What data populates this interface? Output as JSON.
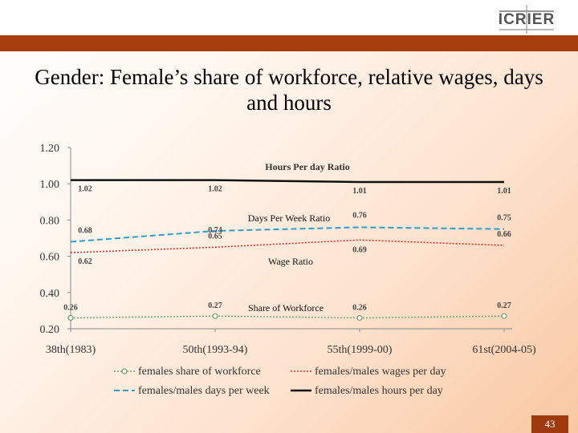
{
  "slide": {
    "title": "Gender: Female’s share of workforce, relative wages, days and hours",
    "logo_text": "ICRIER",
    "page_number": "43"
  },
  "colors": {
    "band": "#a53e0c",
    "share": "#6aa06a",
    "wages": "#e0302a",
    "days": "#2a9fd6",
    "hours": "#111111"
  },
  "chart_data": {
    "type": "line",
    "categories": [
      "38th(1983)",
      "50th(1993-94)",
      "55th(1999-00)",
      "61st(2004-05)"
    ],
    "ylim": [
      0.2,
      1.2
    ],
    "yticks": [
      "0.20",
      "0.40",
      "0.60",
      "0.80",
      "1.00",
      "1.20"
    ],
    "yticks_values": [
      0.2,
      0.4,
      0.6,
      0.8,
      1.0,
      1.2
    ],
    "grid": false,
    "legend_placement": "bottom",
    "series": [
      {
        "key": "share",
        "name": "females share of workforce",
        "values": [
          0.26,
          0.27,
          0.26,
          0.27
        ],
        "labels": [
          "0.26",
          "0.27",
          "0.26",
          "0.27"
        ],
        "style": "dotted-markers",
        "annotation": "Share of Workforce"
      },
      {
        "key": "wages",
        "name": "females/males wages per day",
        "values": [
          0.62,
          0.65,
          0.69,
          0.66
        ],
        "labels": [
          "0.62",
          "0.65",
          "0.69",
          "0.66"
        ],
        "style": "dotted",
        "annotation": "Wage Ratio"
      },
      {
        "key": "days",
        "name": "females/males days per week",
        "values": [
          0.68,
          0.74,
          0.76,
          0.75
        ],
        "labels": [
          "0.68",
          "0.74",
          "0.76",
          "0.75"
        ],
        "style": "dashed",
        "annotation": "Days Per  Week  Ratio"
      },
      {
        "key": "hours",
        "name": "females/males hours per day",
        "values": [
          1.02,
          1.02,
          1.01,
          1.01
        ],
        "labels": [
          "1.02",
          "1.02",
          "1.01",
          "1.01"
        ],
        "style": "solid",
        "annotation": "Hours Per day Ratio"
      }
    ]
  }
}
